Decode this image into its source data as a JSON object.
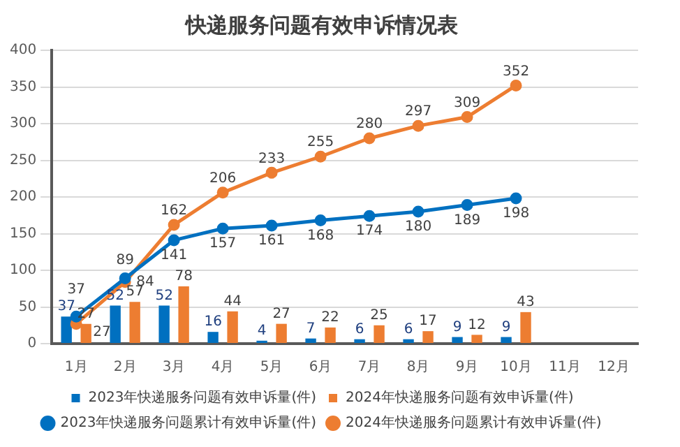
{
  "chart_data": {
    "type": "bar",
    "title": "快递服务问题有效申诉情况表",
    "categories": [
      "1月",
      "2月",
      "3月",
      "4月",
      "5月",
      "6月",
      "7月",
      "8月",
      "9月",
      "10月",
      "11月",
      "12月"
    ],
    "series": [
      {
        "name": "2023年快递服务问题有效申诉量(件)",
        "color": "#0070c0",
        "values": [
          37,
          52,
          52,
          16,
          4,
          7,
          6,
          6,
          9,
          9,
          null,
          null
        ]
      },
      {
        "name": "2024年快递服务问题有效申诉量(件)",
        "color": "#ed7d31",
        "values": [
          27,
          57,
          78,
          44,
          27,
          22,
          25,
          17,
          12,
          43,
          null,
          null
        ]
      },
      {
        "name": "2023年快递服务问题累计有效申诉量(件)",
        "type": "line",
        "color": "#0070c0",
        "values": [
          37,
          89,
          141,
          157,
          161,
          168,
          174,
          180,
          189,
          198,
          null,
          null
        ]
      },
      {
        "name": "2024年快递服务问题累计有效申诉量(件)",
        "type": "line",
        "color": "#ed7d31",
        "values": [
          27,
          84,
          162,
          206,
          233,
          255,
          280,
          297,
          309,
          352,
          null,
          null
        ]
      }
    ],
    "ylim": [
      0,
      400
    ],
    "yticks": [
      0,
      50,
      100,
      150,
      200,
      250,
      300,
      350,
      400
    ],
    "grid": "y",
    "legend": "bottom",
    "marker": "circle",
    "line_style": "solid",
    "data_labels": true
  }
}
